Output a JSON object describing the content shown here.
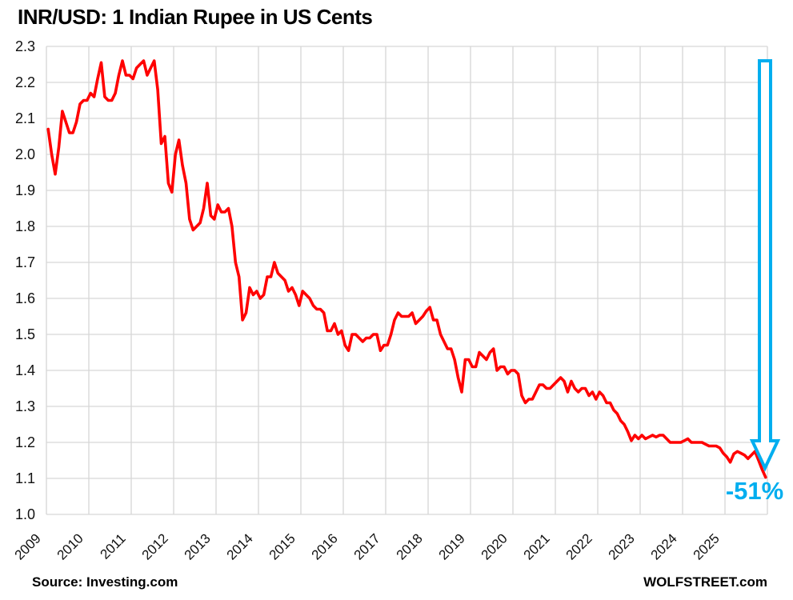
{
  "chart_data": {
    "type": "line",
    "title": "INR/USD: 1 Indian Rupee in US Cents",
    "xlabel": "",
    "ylabel": "",
    "xlim": [
      2009,
      2026
    ],
    "ylim": [
      1.0,
      2.3
    ],
    "grid": true,
    "legend": "none",
    "frequency": "monthly",
    "x_start_year": 2009,
    "points_per_year": 12,
    "xticks": [
      "2009",
      "2010",
      "2011",
      "2012",
      "2013",
      "2014",
      "2015",
      "2016",
      "2017",
      "2018",
      "2019",
      "2020",
      "2021",
      "2022",
      "2023",
      "2024",
      "2025"
    ],
    "yticks": [
      "1.0",
      "1.1",
      "1.2",
      "1.3",
      "1.4",
      "1.5",
      "1.6",
      "1.7",
      "1.8",
      "1.9",
      "2.0",
      "2.1",
      "2.2",
      "2.3"
    ],
    "series_name": "INR in US cents",
    "values": [
      2.07,
      2.0,
      1.945,
      2.02,
      2.12,
      2.09,
      2.06,
      2.06,
      2.09,
      2.14,
      2.15,
      2.15,
      2.17,
      2.16,
      2.21,
      2.255,
      2.16,
      2.15,
      2.15,
      2.17,
      2.22,
      2.26,
      2.22,
      2.22,
      2.21,
      2.24,
      2.25,
      2.26,
      2.22,
      2.24,
      2.26,
      2.18,
      2.03,
      2.05,
      1.92,
      1.895,
      2.0,
      2.04,
      1.97,
      1.92,
      1.82,
      1.79,
      1.8,
      1.81,
      1.85,
      1.92,
      1.83,
      1.82,
      1.86,
      1.84,
      1.84,
      1.85,
      1.8,
      1.7,
      1.66,
      1.54,
      1.56,
      1.63,
      1.61,
      1.62,
      1.6,
      1.61,
      1.66,
      1.66,
      1.7,
      1.67,
      1.66,
      1.65,
      1.62,
      1.63,
      1.61,
      1.58,
      1.62,
      1.61,
      1.6,
      1.58,
      1.57,
      1.57,
      1.56,
      1.51,
      1.51,
      1.53,
      1.5,
      1.51,
      1.47,
      1.455,
      1.5,
      1.5,
      1.49,
      1.48,
      1.49,
      1.49,
      1.5,
      1.5,
      1.455,
      1.47,
      1.47,
      1.5,
      1.54,
      1.56,
      1.55,
      1.55,
      1.55,
      1.56,
      1.53,
      1.54,
      1.55,
      1.565,
      1.575,
      1.54,
      1.54,
      1.5,
      1.48,
      1.46,
      1.46,
      1.43,
      1.38,
      1.34,
      1.43,
      1.43,
      1.41,
      1.41,
      1.45,
      1.44,
      1.43,
      1.45,
      1.46,
      1.4,
      1.41,
      1.41,
      1.39,
      1.4,
      1.4,
      1.39,
      1.33,
      1.31,
      1.32,
      1.32,
      1.34,
      1.36,
      1.36,
      1.35,
      1.35,
      1.36,
      1.37,
      1.38,
      1.37,
      1.34,
      1.37,
      1.35,
      1.34,
      1.35,
      1.35,
      1.33,
      1.34,
      1.32,
      1.34,
      1.33,
      1.31,
      1.31,
      1.29,
      1.28,
      1.26,
      1.25,
      1.23,
      1.205,
      1.22,
      1.21,
      1.22,
      1.21,
      1.215,
      1.22,
      1.215,
      1.22,
      1.22,
      1.21,
      1.2,
      1.2,
      1.2,
      1.2,
      1.205,
      1.21,
      1.2,
      1.2,
      1.2,
      1.2,
      1.195,
      1.19,
      1.19,
      1.19,
      1.185,
      1.17,
      1.16,
      1.145,
      1.168,
      1.175,
      1.17,
      1.165,
      1.155,
      1.165,
      1.175,
      1.15,
      1.125,
      1.103
    ],
    "annotation": {
      "label": "-51%",
      "color": "#00AEEF"
    },
    "source": "Source: Investing.com",
    "brand": "WOLFSTREET.com",
    "colors": {
      "line": "#FF0000",
      "arrow": "#00AEEF",
      "grid": "#D6D6D6",
      "text": "#111111",
      "background": "#FFFFFF"
    }
  }
}
